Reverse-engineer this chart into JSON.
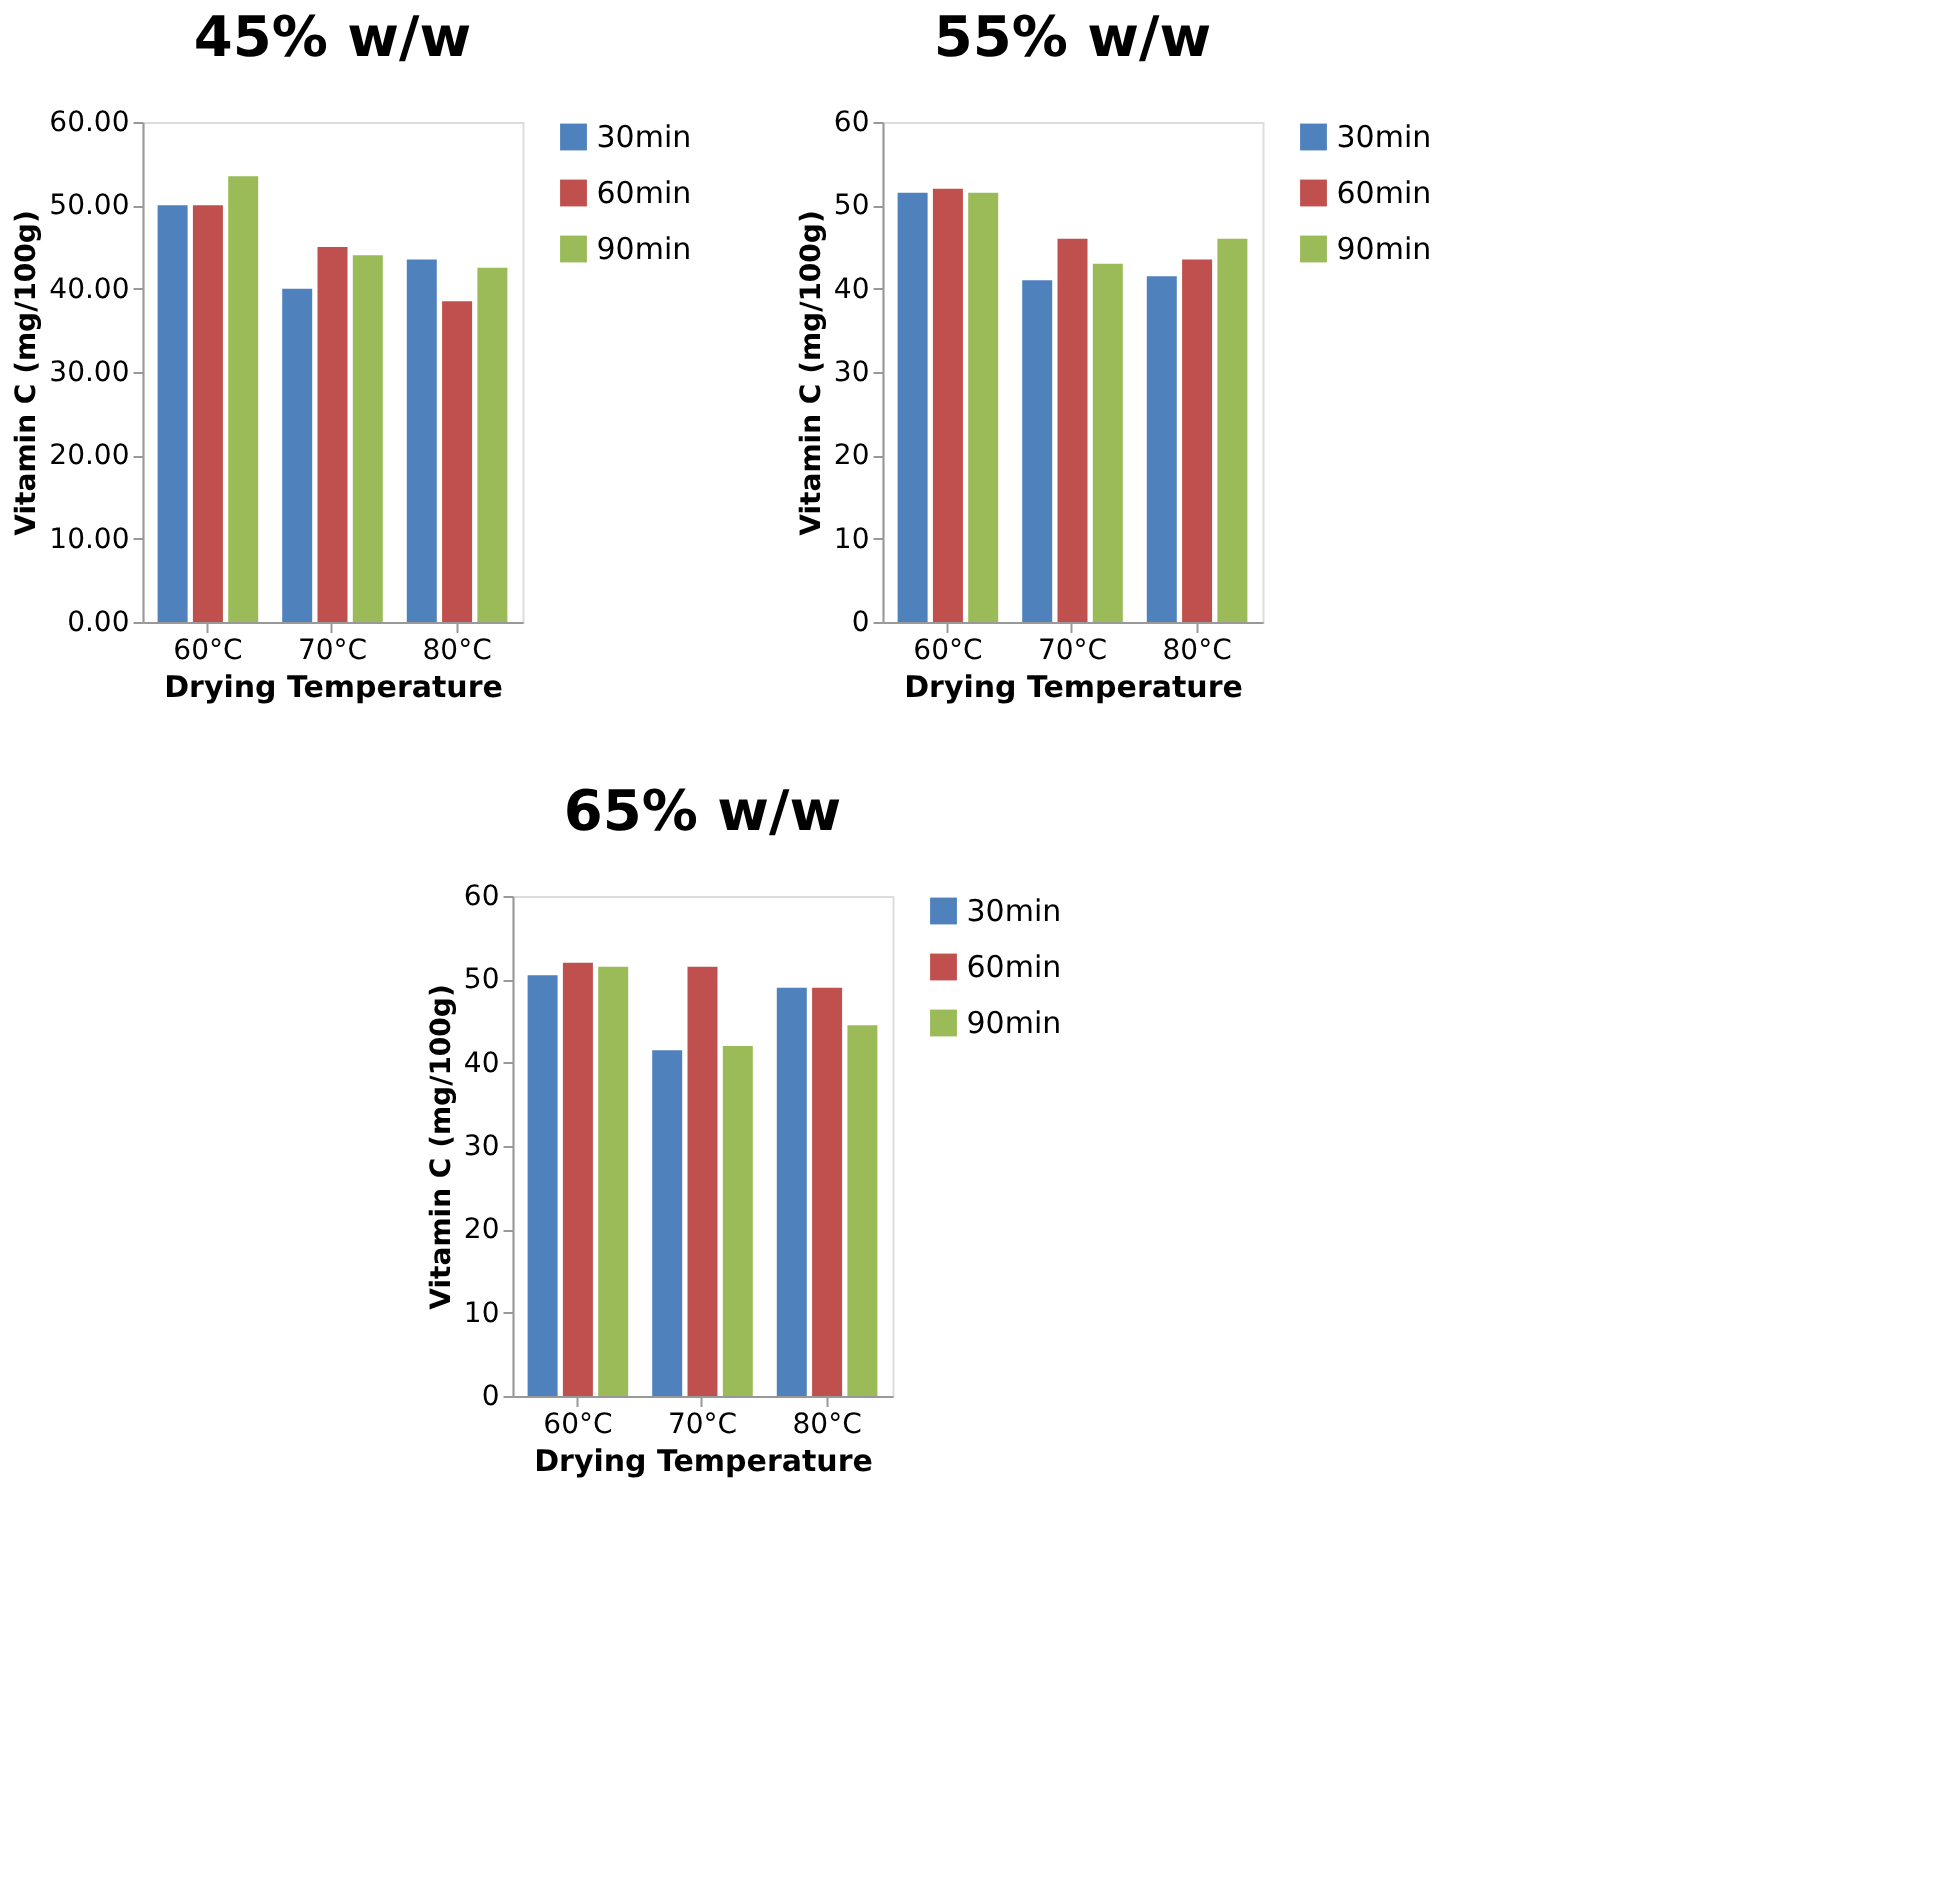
{
  "chart_data": [
    {
      "type": "bar",
      "title": "45% w/w",
      "xlabel": "Drying Temperature",
      "ylabel": "Vitamin C (mg/100g)",
      "categories": [
        "60°C",
        "70°C",
        "80°C"
      ],
      "legend": "right",
      "ylim": [
        0,
        60
      ],
      "yticks": [
        {
          "value": 0,
          "label": "0.00"
        },
        {
          "value": 10,
          "label": "10.00"
        },
        {
          "value": 20,
          "label": "20.00"
        },
        {
          "value": 30,
          "label": "30.00"
        },
        {
          "value": 40,
          "label": "40.00"
        },
        {
          "value": 50,
          "label": "50.00"
        },
        {
          "value": 60,
          "label": "60.00"
        }
      ],
      "series": [
        {
          "name": "30min",
          "color": "#4f81bd",
          "values": [
            50,
            40,
            43.5
          ]
        },
        {
          "name": "60min",
          "color": "#c0504d",
          "values": [
            50,
            45,
            38.5
          ]
        },
        {
          "name": "90min",
          "color": "#9bbb59",
          "values": [
            53.5,
            44,
            42.5
          ]
        }
      ]
    },
    {
      "type": "bar",
      "title": "55% w/w",
      "xlabel": "Drying Temperature",
      "ylabel": "Vitamin C (mg/100g)",
      "categories": [
        "60°C",
        "70°C",
        "80°C"
      ],
      "legend": "right",
      "ylim": [
        0,
        60
      ],
      "yticks": [
        0,
        10,
        20,
        30,
        40,
        50,
        60
      ],
      "series": [
        {
          "name": "30min",
          "color": "#4f81bd",
          "values": [
            51.5,
            41,
            41.5
          ]
        },
        {
          "name": "60min",
          "color": "#c0504d",
          "values": [
            52,
            46,
            43.5
          ]
        },
        {
          "name": "90min",
          "color": "#9bbb59",
          "values": [
            51.5,
            43,
            46
          ]
        }
      ]
    },
    {
      "type": "bar",
      "title": "65% w/w",
      "xlabel": "Drying Temperature",
      "ylabel": "Vitamin C (mg/100g)",
      "categories": [
        "60°C",
        "70°C",
        "80°C"
      ],
      "legend": "right",
      "ylim": [
        0,
        60
      ],
      "yticks": [
        0,
        10,
        20,
        30,
        40,
        50,
        60
      ],
      "series": [
        {
          "name": "30min",
          "color": "#4f81bd",
          "values": [
            50.5,
            41.5,
            49
          ]
        },
        {
          "name": "60min",
          "color": "#c0504d",
          "values": [
            52,
            51.5,
            49
          ]
        },
        {
          "name": "90min",
          "color": "#9bbb59",
          "values": [
            51.5,
            42,
            44.5
          ]
        }
      ]
    }
  ]
}
